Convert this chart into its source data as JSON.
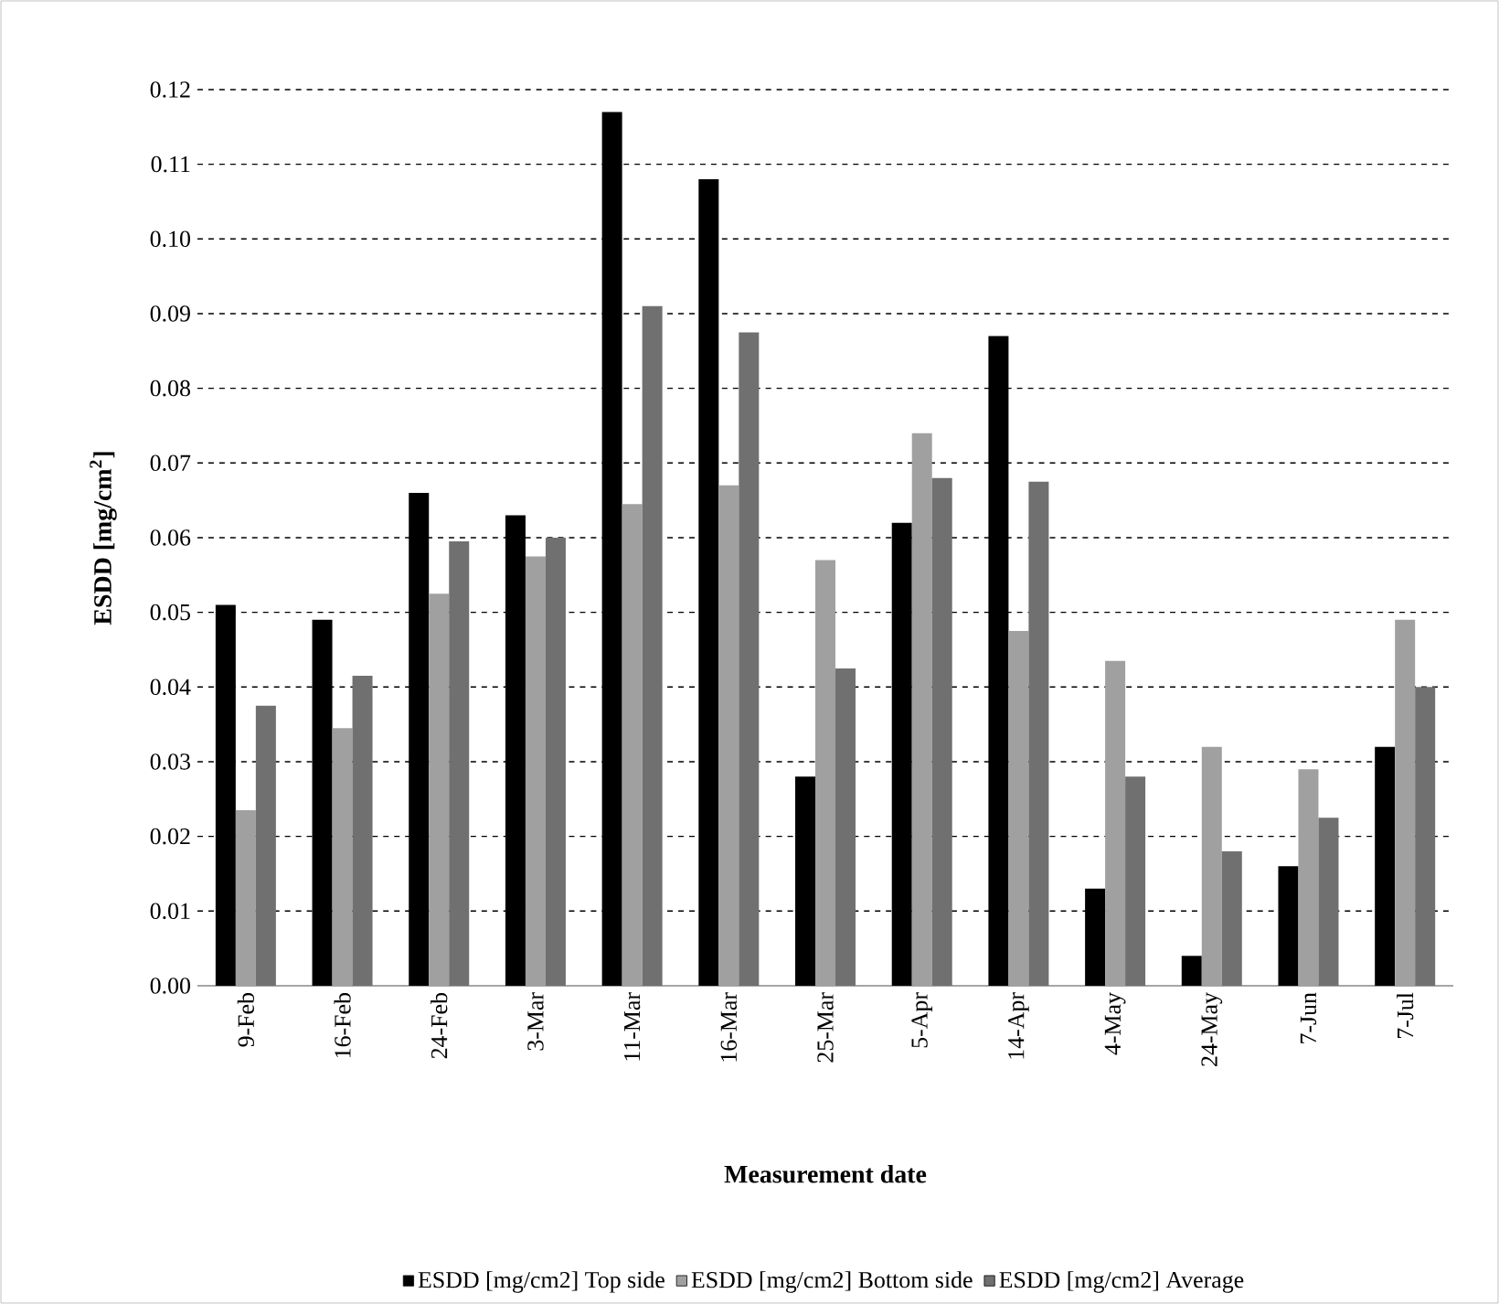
{
  "chart_data": {
    "type": "bar",
    "xlabel": "Measurement date",
    "ylabel": "ESDD [mg/cm$^{2}$]",
    "categories": [
      "9-Feb",
      "16-Feb",
      "24-Feb",
      "3-Mar",
      "11-Mar",
      "16-Mar",
      "25-Mar",
      "5-Apr",
      "14-Apr",
      "4-May",
      "24-May",
      "7-Jun",
      "7-Jul"
    ],
    "series": [
      {
        "name": "ESDD [mg/cm2] Top side",
        "color": "#000000",
        "values": [
          0.051,
          0.049,
          0.066,
          0.063,
          0.117,
          0.108,
          0.028,
          0.062,
          0.087,
          0.013,
          0.004,
          0.016,
          0.032
        ]
      },
      {
        "name": "ESDD [mg/cm2] Bottom side",
        "color": "#a0a0a0",
        "values": [
          0.0235,
          0.0345,
          0.0525,
          0.0575,
          0.0645,
          0.067,
          0.057,
          0.074,
          0.0475,
          0.0435,
          0.032,
          0.029,
          0.049
        ]
      },
      {
        "name": "ESDD [mg/cm2] Average",
        "color": "#707070",
        "values": [
          0.0375,
          0.0415,
          0.0595,
          0.06,
          0.091,
          0.0875,
          0.0425,
          0.068,
          0.0675,
          0.028,
          0.018,
          0.0225,
          0.04
        ]
      }
    ],
    "ylim": [
      0,
      0.12
    ],
    "yticks": [
      {
        "value": 0,
        "label": "0.00"
      },
      {
        "value": 0.01,
        "label": "0.01"
      },
      {
        "value": 0.02,
        "label": "0.02"
      },
      {
        "value": 0.03,
        "label": "0.03"
      },
      {
        "value": 0.04,
        "label": "0.04"
      },
      {
        "value": 0.05,
        "label": "0.05"
      },
      {
        "value": 0.06,
        "label": "0.06"
      },
      {
        "value": 0.07,
        "label": "0.07"
      },
      {
        "value": 0.08,
        "label": "0.08"
      },
      {
        "value": 0.09,
        "label": "0.09"
      },
      {
        "value": 0.1,
        "label": "0.10"
      },
      {
        "value": 0.11,
        "label": "0.11"
      },
      {
        "value": 0.12,
        "label": "0.12"
      }
    ],
    "grid": "y",
    "legend": "bottom"
  }
}
